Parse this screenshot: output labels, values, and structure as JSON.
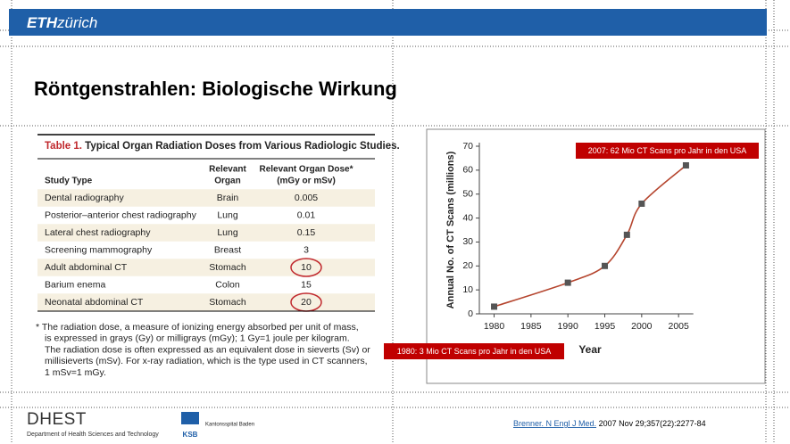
{
  "header": {
    "logo_bold": "ETH",
    "logo_italic": "zürich"
  },
  "title": "Röntgenstrahlen: Biologische Wirkung",
  "table": {
    "label": "Table 1.",
    "caption": "Typical Organ Radiation Doses from Various Radiologic Studies.",
    "columns": [
      [
        "Study Type"
      ],
      [
        "Relevant",
        "Organ"
      ],
      [
        "Relevant Organ Dose*",
        "(mGy or mSv)"
      ]
    ],
    "rows": [
      [
        "Dental radiography",
        "Brain",
        "0.005"
      ],
      [
        "Posterior–anterior chest radiography",
        "Lung",
        "0.01"
      ],
      [
        "Lateral chest radiography",
        "Lung",
        "0.15"
      ],
      [
        "Screening mammography",
        "Breast",
        "3"
      ],
      [
        "Adult abdominal CT",
        "Stomach",
        "10"
      ],
      [
        "Barium enema",
        "Colon",
        "15"
      ],
      [
        "Neonatal abdominal CT",
        "Stomach",
        "20"
      ]
    ],
    "footnote": [
      "* The radiation dose, a measure of ionizing energy absorbed per unit of mass,",
      "is expressed in grays (Gy) or milligrays (mGy); 1 Gy=1 joule per kilogram.",
      "The radiation dose is often expressed as an equivalent dose in sieverts (Sv) or",
      "millisieverts (mSv). For x-ray radiation, which is the type used in CT scanners,",
      "1 mSv=1 mGy."
    ]
  },
  "chart_data": {
    "type": "line",
    "x": [
      1980,
      1990,
      1995,
      1998,
      2000,
      2006
    ],
    "values": [
      3,
      13,
      20,
      33,
      46,
      62
    ],
    "color": "#b5452e",
    "xlim": [
      1978,
      2007
    ],
    "ylim": [
      0,
      70
    ],
    "xticks": [
      1980,
      1985,
      1990,
      1995,
      2000,
      2005
    ],
    "yticks": [
      0,
      10,
      20,
      30,
      40,
      50,
      60,
      70
    ],
    "xlabel": "Year",
    "ylabel": "Annual No. of CT Scans (millions)",
    "annotations": [
      "2007: 62 Mio CT Scans pro Jahr in den USA",
      "1980: 3 Mio CT Scans pro Jahr in den USA"
    ]
  },
  "footer": {
    "dhest": "DHEST",
    "dhest_sub": "Department of Health Sciences and Technology",
    "ksb": "KSB",
    "ksb_name": "Kantonsspital Baden",
    "citation_link": "Brenner. N Engl J Med.",
    "citation_rest": "2007 Nov 29;357(22):2277-84"
  }
}
